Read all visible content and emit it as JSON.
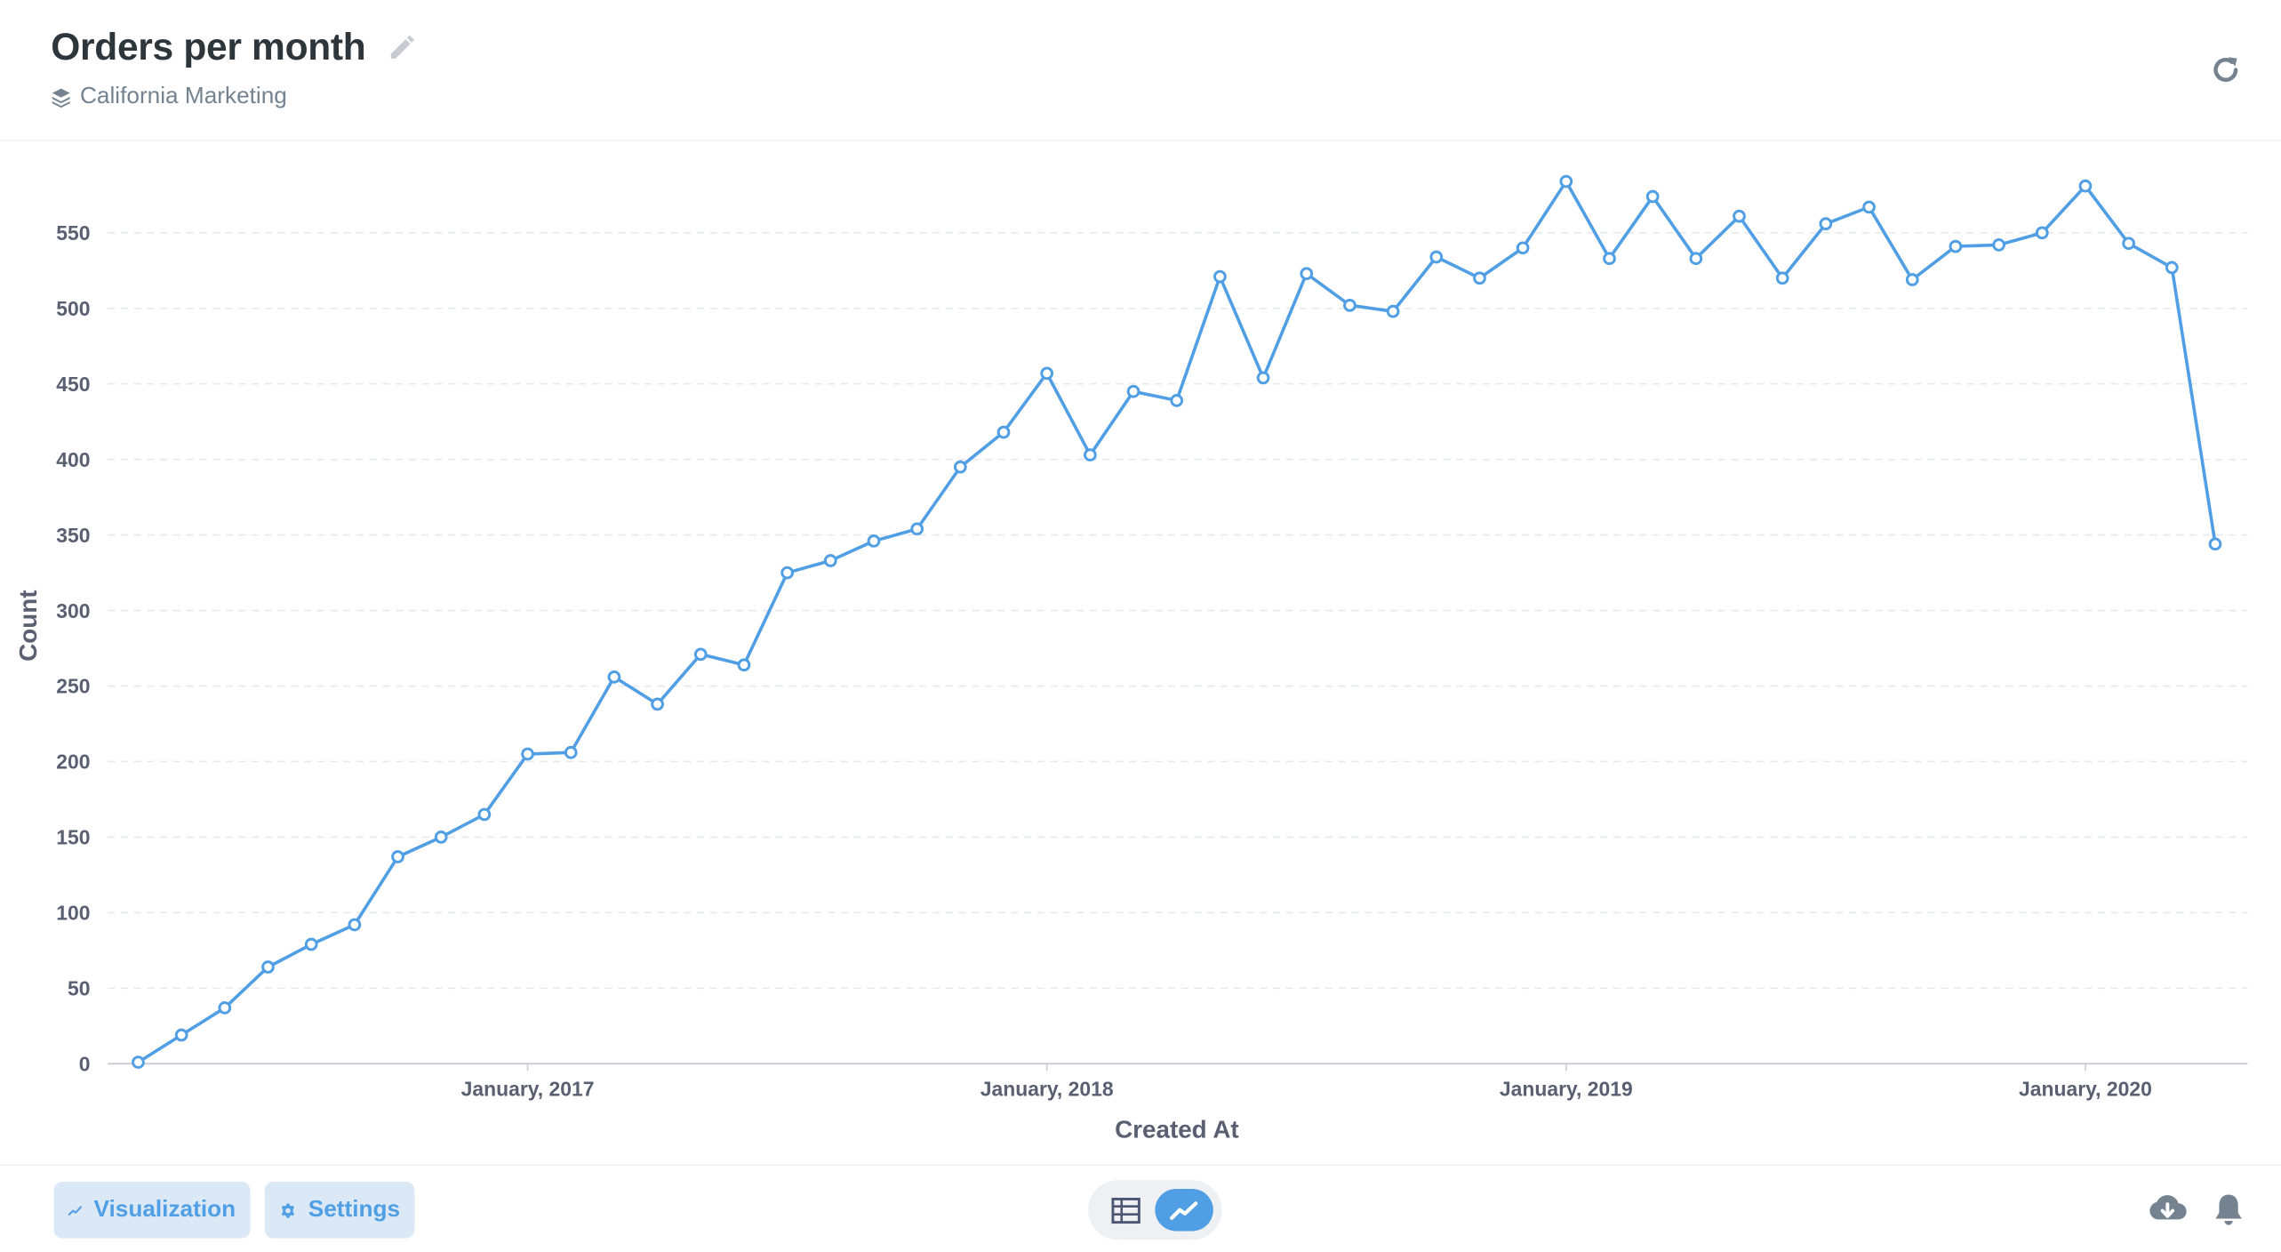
{
  "header": {
    "title": "Orders per month",
    "collection": "California Marketing"
  },
  "footer": {
    "visualization_label": "Visualization",
    "settings_label": "Settings"
  },
  "colors": {
    "series": "#509ee3",
    "grid": "#e6e9ee",
    "axis_text": "#5a6072",
    "button_bg": "#dbe9f7"
  },
  "icons": {
    "edit": "pencil-icon",
    "collection": "layers-icon",
    "refresh": "refresh-icon",
    "visualization": "line-chart-icon",
    "settings": "gear-icon",
    "table_toggle": "table-icon",
    "line_toggle": "line-chart-icon",
    "download": "cloud-download-icon",
    "alert": "bell-icon"
  },
  "chart_data": {
    "type": "line",
    "xlabel": "Created At",
    "ylabel": "Count",
    "ylim": [
      0,
      590
    ],
    "yticks": [
      0,
      50,
      100,
      150,
      200,
      250,
      300,
      350,
      400,
      450,
      500,
      550
    ],
    "xticks": [
      {
        "label": "January, 2017",
        "index": 9
      },
      {
        "label": "January, 2018",
        "index": 21
      },
      {
        "label": "January, 2019",
        "index": 33
      },
      {
        "label": "January, 2020",
        "index": 45
      }
    ],
    "grid": true,
    "series": [
      {
        "values": [
          1,
          19,
          37,
          64,
          79,
          92,
          137,
          150,
          165,
          205,
          206,
          256,
          238,
          271,
          264,
          325,
          333,
          346,
          354,
          395,
          418,
          457,
          403,
          445,
          439,
          521,
          454,
          523,
          502,
          498,
          534,
          520,
          540,
          584,
          533,
          574,
          533,
          561,
          520,
          556,
          567,
          519,
          541,
          542,
          550,
          581,
          543,
          527,
          344
        ]
      }
    ]
  }
}
